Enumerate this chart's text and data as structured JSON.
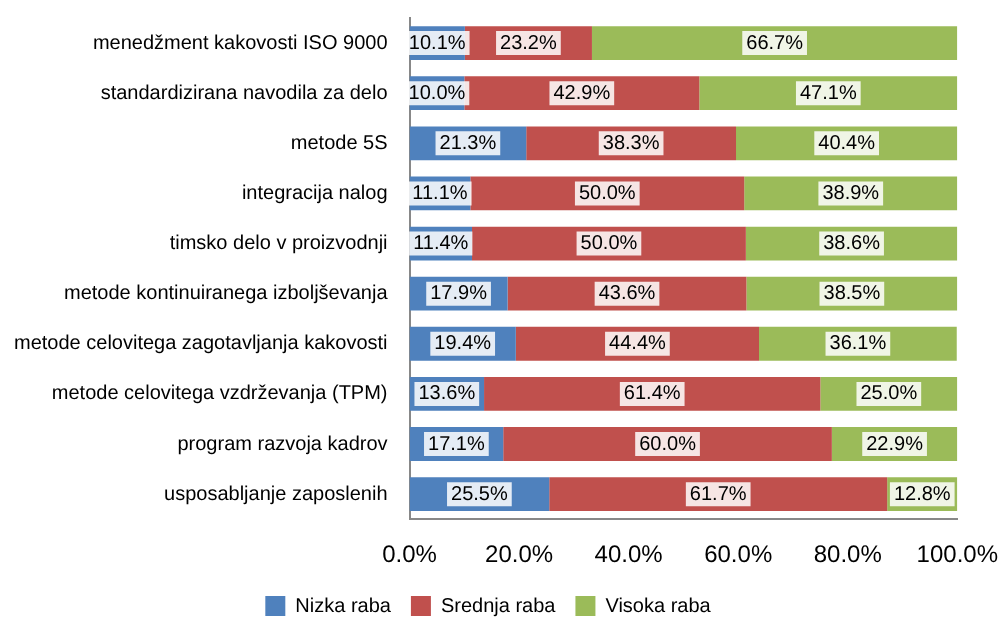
{
  "chart_data": {
    "type": "bar",
    "orientation": "horizontal",
    "stacked": true,
    "legend": "bottom",
    "grid": false,
    "categories": [
      "menedžment kakovosti ISO 9000",
      "standardizirana navodila za delo",
      "metode 5S",
      "integracija nalog",
      "timsko delo v proizvodnji",
      "metode kontinuiranega izboljševanja",
      "metode celovitega zagotavljanja kakovosti",
      "metode celovitega vzdrževanja (TPM)",
      "program razvoja kadrov",
      "usposabljanje zaposlenih"
    ],
    "series": [
      {
        "name": "Nizka raba",
        "color": "#4f81bd",
        "values": [
          10.1,
          10.0,
          21.3,
          11.1,
          11.4,
          17.9,
          19.4,
          13.6,
          17.1,
          25.5
        ],
        "value_labels": [
          "10.1%",
          "10.0%",
          "21.3%",
          "11.1%",
          "11.4%",
          "17.9%",
          "19.4%",
          "13.6%",
          "17.1%",
          "25.5%"
        ]
      },
      {
        "name": "Srednja raba",
        "color": "#c0504d",
        "values": [
          23.2,
          42.9,
          38.3,
          50.0,
          50.0,
          43.6,
          44.4,
          61.4,
          60.0,
          61.7
        ],
        "value_labels": [
          "23.2%",
          "42.9%",
          "38.3%",
          "50.0%",
          "50.0%",
          "43.6%",
          "44.4%",
          "61.4%",
          "60.0%",
          "61.7%"
        ]
      },
      {
        "name": "Visoka raba",
        "color": "#9bbb59",
        "values": [
          66.7,
          47.1,
          40.4,
          38.9,
          38.6,
          38.5,
          36.1,
          25.0,
          22.9,
          12.8
        ],
        "value_labels": [
          "66.7%",
          "47.1%",
          "40.4%",
          "38.9%",
          "38.6%",
          "38.5%",
          "36.1%",
          "25.0%",
          "22.9%",
          "12.8%"
        ]
      }
    ],
    "xlim": [
      0,
      100
    ],
    "xticks": [
      {
        "value": 0,
        "label": "0.0%"
      },
      {
        "value": 20,
        "label": "20.0%"
      },
      {
        "value": 40,
        "label": "40.0%"
      },
      {
        "value": 60,
        "label": "60.0%"
      },
      {
        "value": 80,
        "label": "80.0%"
      },
      {
        "value": 100,
        "label": "100.0%"
      }
    ]
  }
}
